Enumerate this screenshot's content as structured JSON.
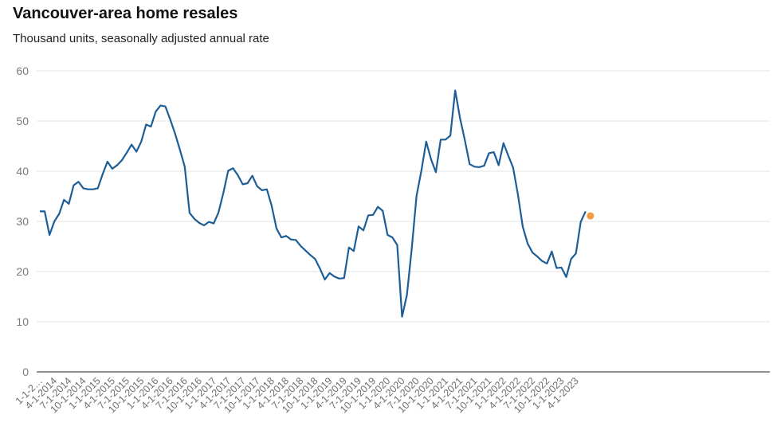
{
  "chart_data": {
    "type": "line",
    "title": "Vancouver-area home resales",
    "subtitle": "Thousand units, seasonally adjusted annual rate",
    "ylim": [
      0,
      60
    ],
    "y_ticks": [
      0,
      10,
      20,
      30,
      40,
      50,
      60
    ],
    "grid": true,
    "x_labels": [
      "1-1-2…",
      "4-1-2014",
      "7-1-2014",
      "10-1-2014",
      "1-1-2015",
      "4-1-2015",
      "7-1-2015",
      "10-1-2015",
      "1-1-2016",
      "4-1-2016",
      "7-1-2016",
      "10-1-2016",
      "1-1-2017",
      "4-1-2017",
      "7-1-2017",
      "10-1-2017",
      "1-1-2018",
      "4-1-2018",
      "7-1-2018",
      "10-1-2018",
      "1-1-2019",
      "4-1-2019",
      "7-1-2019",
      "10-1-2019",
      "1-1-2020",
      "4-1-2020",
      "7-1-2020",
      "10-1-2020",
      "1-1-2021",
      "4-1-2021",
      "7-1-2021",
      "10-1-2021",
      "1-1-2022",
      "4-1-2022",
      "7-1-2022",
      "10-1-2022",
      "1-1-2023",
      "4-1-2023"
    ],
    "series": [
      {
        "color": "#1d5e96",
        "x": [
          "2014-01",
          "2014-02",
          "2014-03",
          "2014-04",
          "2014-05",
          "2014-06",
          "2014-07",
          "2014-08",
          "2014-09",
          "2014-10",
          "2014-11",
          "2014-12",
          "2015-01",
          "2015-02",
          "2015-03",
          "2015-04",
          "2015-05",
          "2015-06",
          "2015-07",
          "2015-08",
          "2015-09",
          "2015-10",
          "2015-11",
          "2015-12",
          "2016-01",
          "2016-02",
          "2016-03",
          "2016-04",
          "2016-05",
          "2016-06",
          "2016-07",
          "2016-08",
          "2016-09",
          "2016-10",
          "2016-11",
          "2016-12",
          "2017-01",
          "2017-02",
          "2017-03",
          "2017-04",
          "2017-05",
          "2017-06",
          "2017-07",
          "2017-08",
          "2017-09",
          "2017-10",
          "2017-11",
          "2017-12",
          "2018-01",
          "2018-02",
          "2018-03",
          "2018-04",
          "2018-05",
          "2018-06",
          "2018-07",
          "2018-08",
          "2018-09",
          "2018-10",
          "2018-11",
          "2018-12",
          "2019-01",
          "2019-02",
          "2019-03",
          "2019-04",
          "2019-05",
          "2019-06",
          "2019-07",
          "2019-08",
          "2019-09",
          "2019-10",
          "2019-11",
          "2019-12",
          "2020-01",
          "2020-02",
          "2020-03",
          "2020-04",
          "2020-05",
          "2020-06",
          "2020-07",
          "2020-08",
          "2020-09",
          "2020-10",
          "2020-11",
          "2020-12",
          "2021-01",
          "2021-02",
          "2021-03",
          "2021-04",
          "2021-05",
          "2021-06",
          "2021-07",
          "2021-08",
          "2021-09",
          "2021-10",
          "2021-11",
          "2021-12",
          "2022-01",
          "2022-02",
          "2022-03",
          "2022-04",
          "2022-05",
          "2022-06",
          "2022-07",
          "2022-08",
          "2022-09",
          "2022-10",
          "2022-11",
          "2022-12",
          "2023-01",
          "2023-02",
          "2023-03",
          "2023-04",
          "2023-05",
          "2023-06",
          "2023-07"
        ],
        "values": [
          32.0,
          32.0,
          27.3,
          30.0,
          31.5,
          34.3,
          33.5,
          37.2,
          37.9,
          36.6,
          36.4,
          36.4,
          36.6,
          39.4,
          41.9,
          40.5,
          41.2,
          42.2,
          43.7,
          45.3,
          43.9,
          45.9,
          49.3,
          48.9,
          51.9,
          53.1,
          52.9,
          50.3,
          47.5,
          44.3,
          40.9,
          31.7,
          30.5,
          29.7,
          29.2,
          29.9,
          29.6,
          31.8,
          35.7,
          40.1,
          40.6,
          39.2,
          37.4,
          37.6,
          39.1,
          37.0,
          36.2,
          36.4,
          33.1,
          28.6,
          26.8,
          27.1,
          26.4,
          26.3,
          25.1,
          24.2,
          23.3,
          22.5,
          20.6,
          18.4,
          19.7,
          19.0,
          18.6,
          18.7,
          24.8,
          24.1,
          29.0,
          28.2,
          31.2,
          31.3,
          32.9,
          32.1,
          27.3,
          26.8,
          25.3,
          11.0,
          15.3,
          24.5,
          35.1,
          40.1,
          45.9,
          42.4,
          39.8,
          46.3,
          46.3,
          47.1,
          56.1,
          50.6,
          46.2,
          41.4,
          40.9,
          40.8,
          41.1,
          43.6,
          43.8,
          41.2,
          45.6,
          43.1,
          40.7,
          35.3,
          28.9,
          25.6,
          23.8,
          23.0,
          22.1,
          21.6,
          24.0,
          20.7,
          20.8,
          18.9,
          22.5,
          23.6,
          29.9,
          32.0,
          null
        ]
      }
    ],
    "highlight_point": {
      "x": "2023-07",
      "value": 31.1,
      "color": "#f39a3f"
    }
  }
}
